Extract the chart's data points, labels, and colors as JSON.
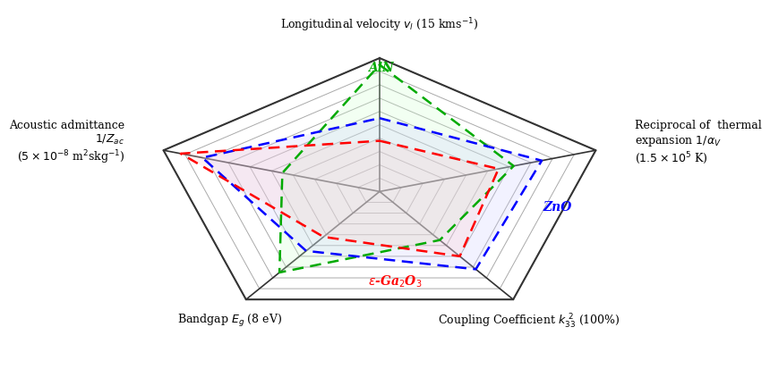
{
  "axes_labels": [
    "Longitudinal velocity $v_l$ (15 kms$^{-1}$)",
    "Reciprocal of  thermal\nexpansion $1/\\alpha_V$\n($1.5\\times10^5$ K)",
    "Coupling Coefficient $k_{33}^{\\ 2}$ (100%)",
    "Bandgap $E_g$ (8 eV)",
    "Acoustic admittance\n$1/Z_{ac}$\n($5\\times10^{-8}$ m$^2$skg$^{-1}$)"
  ],
  "num_axes": 5,
  "num_rings": 10,
  "materials": {
    "AlN": {
      "values": [
        0.95,
        0.62,
        0.45,
        0.75,
        0.45
      ],
      "color": "#00aa00",
      "label": "AlN",
      "fill_color": "#ccffcc",
      "fill_alpha": 0.25
    },
    "ZnO": {
      "values": [
        0.55,
        0.75,
        0.72,
        0.55,
        0.82
      ],
      "color": "#0000ff",
      "label": "ZnO",
      "fill_color": "#ccccff",
      "fill_alpha": 0.25
    },
    "Ga2O3": {
      "values": [
        0.38,
        0.55,
        0.6,
        0.42,
        0.92
      ],
      "color": "#ff0000",
      "label": "ε-Ga$_2$O$_3$",
      "fill_color": "#ffcccc",
      "fill_alpha": 0.25
    }
  },
  "bg_color": "#ffffff",
  "grid_color": "#aaaaaa",
  "spine_color": "#333333"
}
